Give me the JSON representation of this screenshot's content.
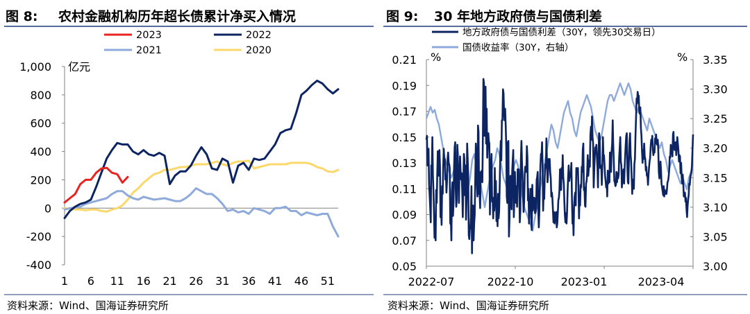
{
  "panels": {
    "left": {
      "fig_label": "图 8:",
      "title": "农村金融机构历年超长债累计净买入情况",
      "source": "资料来源：Wind、国海证券研究所"
    },
    "right": {
      "fig_label": "图 9:",
      "title": "30 年地方政府债与国债利差",
      "source": "资料来源：Wind、国海证券研究所"
    }
  },
  "chart_data": [
    {
      "type": "line",
      "title": "",
      "unit_label": "亿元",
      "xlabel": "",
      "ylabel": "",
      "xlim": [
        1,
        53
      ],
      "ylim": [
        -400,
        1000
      ],
      "x_ticks": [
        1,
        6,
        11,
        16,
        21,
        26,
        31,
        36,
        41,
        46,
        51
      ],
      "y_ticks": [
        -400,
        -200,
        0,
        200,
        400,
        600,
        800,
        1000
      ],
      "y_tick_labels": [
        "-400",
        "-200",
        "0",
        "200",
        "400",
        "600",
        "800",
        "1,000"
      ],
      "grid": false,
      "legend_placement": "top",
      "series": [
        {
          "name": "2023",
          "color": "#e8231f",
          "x": [
            1,
            2,
            3,
            4,
            5,
            6,
            7,
            8,
            9,
            10,
            11,
            12,
            13
          ],
          "values": [
            40,
            70,
            100,
            170,
            200,
            200,
            250,
            280,
            285,
            250,
            240,
            180,
            220
          ]
        },
        {
          "name": "2022",
          "color": "#0c2461",
          "x": [
            1,
            2,
            3,
            4,
            5,
            6,
            7,
            8,
            9,
            10,
            11,
            12,
            13,
            14,
            15,
            16,
            17,
            18,
            19,
            20,
            21,
            22,
            23,
            24,
            25,
            26,
            27,
            28,
            29,
            30,
            31,
            32,
            33,
            34,
            35,
            36,
            37,
            38,
            39,
            40,
            41,
            42,
            43,
            44,
            45,
            46,
            47,
            48,
            49,
            50,
            51,
            52,
            53
          ],
          "values": [
            -70,
            -20,
            10,
            30,
            40,
            60,
            150,
            250,
            350,
            410,
            460,
            450,
            450,
            400,
            380,
            410,
            380,
            370,
            390,
            370,
            170,
            230,
            260,
            260,
            300,
            370,
            430,
            380,
            280,
            270,
            350,
            330,
            180,
            300,
            320,
            270,
            350,
            340,
            350,
            400,
            450,
            530,
            550,
            560,
            670,
            800,
            830,
            870,
            900,
            880,
            840,
            810,
            840
          ]
        },
        {
          "name": "2021",
          "color": "#8eaadb",
          "x": [
            1,
            2,
            3,
            4,
            5,
            6,
            7,
            8,
            9,
            10,
            11,
            12,
            13,
            14,
            15,
            16,
            17,
            18,
            19,
            20,
            21,
            22,
            23,
            24,
            25,
            26,
            27,
            28,
            29,
            30,
            31,
            32,
            33,
            34,
            35,
            36,
            37,
            38,
            39,
            40,
            41,
            42,
            43,
            44,
            45,
            46,
            47,
            48,
            49,
            50,
            51,
            52,
            53
          ],
          "values": [
            -10,
            0,
            5,
            10,
            30,
            40,
            50,
            60,
            70,
            100,
            120,
            120,
            90,
            70,
            60,
            80,
            70,
            60,
            65,
            70,
            60,
            50,
            50,
            70,
            100,
            140,
            120,
            100,
            100,
            70,
            30,
            -20,
            -10,
            -30,
            -20,
            -40,
            0,
            -10,
            -20,
            -40,
            0,
            0,
            10,
            -20,
            -20,
            -50,
            -30,
            -40,
            -50,
            -40,
            -40,
            -130,
            -200
          ]
        },
        {
          "name": "2020",
          "color": "#fbd869",
          "x": [
            1,
            2,
            3,
            4,
            5,
            6,
            7,
            8,
            9,
            10,
            11,
            12,
            13,
            14,
            15,
            16,
            17,
            18,
            19,
            20,
            21,
            22,
            23,
            24,
            25,
            26,
            27,
            28,
            29,
            30,
            31,
            32,
            33,
            34,
            35,
            36,
            37,
            38,
            39,
            40,
            41,
            42,
            43,
            44,
            45,
            46,
            47,
            48,
            49,
            50,
            51,
            52,
            53
          ],
          "values": [
            0,
            -5,
            -10,
            -10,
            -15,
            -10,
            -10,
            -20,
            -25,
            -10,
            0,
            20,
            60,
            110,
            140,
            180,
            210,
            240,
            250,
            270,
            270,
            280,
            290,
            290,
            300,
            310,
            310,
            310,
            320,
            330,
            310,
            300,
            320,
            330,
            330,
            335,
            280,
            290,
            300,
            310,
            310,
            310,
            310,
            320,
            320,
            320,
            320,
            310,
            290,
            280,
            260,
            255,
            270
          ]
        }
      ]
    },
    {
      "type": "line",
      "title": "",
      "xlabel": "",
      "ylabel": "%",
      "ylabel_right": "%",
      "x_tick_labels": [
        "2022-07",
        "2022-10",
        "2023-01",
        "2023-04"
      ],
      "x_tick_positions": [
        0.0,
        0.3333,
        0.6667,
        1.0
      ],
      "ylim": [
        0.05,
        0.21
      ],
      "y_ticks": [
        0.05,
        0.07,
        0.09,
        0.11,
        0.13,
        0.15,
        0.17,
        0.19,
        0.21
      ],
      "ylim_right": [
        3.0,
        3.35
      ],
      "y_ticks_right": [
        3.0,
        3.05,
        3.1,
        3.15,
        3.2,
        3.25,
        3.3,
        3.35
      ],
      "grid": false,
      "legend_placement": "top",
      "series": [
        {
          "name": "地方政府债与国债利差（30Y，领先30交易日）",
          "color": "#0c2461",
          "axis": "left",
          "values": [
            0.148,
            0.151,
            0.128,
            0.134,
            0.141,
            0.113,
            0.105,
            0.095,
            0.084,
            0.128,
            0.125,
            0.15,
            0.12,
            0.108,
            0.093,
            0.072,
            0.078,
            0.07,
            0.109,
            0.099,
            0.12,
            0.139,
            0.121,
            0.12,
            0.14,
            0.127,
            0.088,
            0.099,
            0.082,
            0.112,
            0.106,
            0.127,
            0.141,
            0.131,
            0.133,
            0.117,
            0.12,
            0.107,
            0.116,
            0.133,
            0.138,
            0.13,
            0.129,
            0.126,
            0.083,
            0.086,
            0.07,
            0.108,
            0.115,
            0.089,
            0.099,
            0.127,
            0.142,
            0.146,
            0.11,
            0.096,
            0.101,
            0.144,
            0.121,
            0.125,
            0.099,
            0.128,
            0.135,
            0.123,
            0.117,
            0.122,
            0.108,
            0.088,
            0.115,
            0.137,
            0.133,
            0.105,
            0.128,
            0.086,
            0.103,
            0.145,
            0.134,
            0.121,
            0.074,
            0.071,
            0.079,
            0.079,
            0.088,
            0.112,
            0.06,
            0.097,
            0.097,
            0.07,
            0.083,
            0.09,
            0.118,
            0.145,
            0.134,
            0.116,
            0.104,
            0.159,
            0.154,
            0.106,
            0.107,
            0.095,
            0.123,
            0.119,
            0.124,
            0.115,
            0.148,
            0.195,
            0.192,
            0.151,
            0.183,
            0.189,
            0.145,
            0.172,
            0.134,
            0.146,
            0.153,
            0.147,
            0.145,
            0.09,
            0.114,
            0.128,
            0.137,
            0.1,
            0.103,
            0.087,
            0.103,
            0.093,
            0.126,
            0.096,
            0.116,
            0.085,
            0.093,
            0.081,
            0.106,
            0.087,
            0.093,
            0.113,
            0.137,
            0.147,
            0.132,
            0.163,
            0.163,
            0.187,
            0.184,
            0.17,
            0.163,
            0.172,
            0.159,
            0.143,
            0.104,
            0.099,
            0.146,
            0.147,
            0.073,
            0.087,
            0.117,
            0.12,
            0.097,
            0.094,
            0.124,
            0.133,
            0.14,
            0.088,
            0.104,
            0.123,
            0.105,
            0.099,
            0.112,
            0.096,
            0.125,
            0.12,
            0.125,
            0.111,
            0.084,
            0.093,
            0.133,
            0.147,
            0.131,
            0.12,
            0.104,
            0.092,
            0.1,
            0.121,
            0.127,
            0.123,
            0.123,
            0.143,
            0.134,
            0.101,
            0.11,
            0.083,
            0.103,
            0.096,
            0.11,
            0.088,
            0.078,
            0.113,
            0.093,
            0.098,
            0.103,
            0.103,
            0.091,
            0.092,
            0.095,
            0.117,
            0.119,
            0.123,
            0.093,
            0.08,
            0.093,
            0.114,
            0.128,
            0.137,
            0.136,
            0.146,
            0.125,
            0.093,
            0.108,
            0.102,
            0.12,
            0.129,
            0.126,
            0.149,
            0.132,
            0.115,
            0.121,
            0.133,
            0.133,
            0.133,
            0.123,
            0.118,
            0.104,
            0.107,
            0.103,
            0.094,
            0.084,
            0.092,
            0.083,
            0.091,
            0.09,
            0.092,
            0.08,
            0.083,
            0.092,
            0.101,
            0.103,
            0.109,
            0.125,
            0.122,
            0.109,
            0.126,
            0.118,
            0.136,
            0.119,
            0.114,
            0.101,
            0.09,
            0.084,
            0.091,
            0.083,
            0.092,
            0.107,
            0.119,
            0.128,
            0.116,
            0.119,
            0.122,
            0.123,
            0.13,
            0.103,
            0.083,
            0.088,
            0.074,
            0.097,
            0.104,
            0.107,
            0.097,
            0.126,
            0.123,
            0.125,
            0.126,
            0.111,
            0.087,
            0.103,
            0.097,
            0.113,
            0.111,
            0.127,
            0.123,
            0.14,
            0.145,
            0.109,
            0.111,
            0.097,
            0.096,
            0.114,
            0.116,
            0.122,
            0.136,
            0.12,
            0.125,
            0.132,
            0.127,
            0.152,
            0.158,
            0.148,
            0.166,
            0.15,
            0.145,
            0.111,
            0.124,
            0.134,
            0.142,
            0.138,
            0.144,
            0.134,
            0.126,
            0.111,
            0.136,
            0.153,
            0.15,
            0.126,
            0.128,
            0.128,
            0.113,
            0.128,
            0.15,
            0.135,
            0.136,
            0.129,
            0.12,
            0.116,
            0.111,
            0.115,
            0.104,
            0.124,
            0.114,
            0.118,
            0.115,
            0.138,
            0.123,
            0.123,
            0.139,
            0.145,
            0.163,
            0.145,
            0.133,
            0.116,
            0.115,
            0.112,
            0.113,
            0.123,
            0.115,
            0.122,
            0.118,
            0.121,
            0.134,
            0.142,
            0.15,
            0.131,
            0.128,
            0.111,
            0.117,
            0.122,
            0.125,
            0.114,
            0.126,
            0.135,
            0.144,
            0.151,
            0.153,
            0.126,
            0.115,
            0.114,
            0.133,
            0.147,
            0.153,
            0.136,
            0.131,
            0.12,
            0.106,
            0.117,
            0.115,
            0.11,
            0.129,
            0.133,
            0.151,
            0.165,
            0.18,
            0.176,
            0.185,
            0.182,
            0.182,
            0.169,
            0.168,
            0.173,
            0.157,
            0.151,
            0.139,
            0.13,
            0.14,
            0.133,
            0.145,
            0.135,
            0.133,
            0.124,
            0.127,
            0.12,
            0.121,
            0.113,
            0.121,
            0.127,
            0.131,
            0.134,
            0.143,
            0.148,
            0.146,
            0.151,
            0.14,
            0.136,
            0.139,
            0.138,
            0.149,
            0.146,
            0.152,
            0.145,
            0.144,
            0.148,
            0.14,
            0.123,
            0.118,
            0.121,
            0.131,
            0.124,
            0.114,
            0.111,
            0.108,
            0.105,
            0.112,
            0.104,
            0.109,
            0.107,
            0.106,
            0.106,
            0.11,
            0.115,
            0.116,
            0.119,
            0.124,
            0.135,
            0.134,
            0.144,
            0.14,
            0.141,
            0.135,
            0.152,
            0.154,
            0.143,
            0.14,
            0.143,
            0.146,
            0.136,
            0.142,
            0.15,
            0.145,
            0.14,
            0.131,
            0.136,
            0.135,
            0.122,
            0.13,
            0.119,
            0.114,
            0.121,
            0.114,
            0.104,
            0.104,
            0.107,
            0.1,
            0.103,
            0.094,
            0.088,
            0.097,
            0.102,
            0.105,
            0.114,
            0.113,
            0.119,
            0.121,
            0.123,
            0.128,
            0.14,
            0.152
          ]
        },
        {
          "name": "国债收益率（30Y，右轴）",
          "color": "#8eaadb",
          "axis": "right",
          "values": [
            3.25,
            3.26,
            3.27,
            3.26,
            3.265,
            3.25,
            3.24,
            3.22,
            3.2,
            3.18,
            3.17,
            3.16,
            3.15,
            3.16,
            3.18,
            3.2,
            3.17,
            3.15,
            3.13,
            3.12,
            3.13,
            3.15,
            3.18,
            3.19,
            3.17,
            3.16,
            3.14,
            3.12,
            3.1,
            3.12,
            3.14,
            3.16,
            3.17,
            3.18,
            3.2,
            3.19,
            3.17,
            3.15,
            3.14,
            3.13,
            3.12,
            3.14,
            3.17,
            3.18,
            3.17,
            3.15,
            3.12,
            3.1,
            3.09,
            3.08,
            3.07,
            3.06,
            3.08,
            3.1,
            3.12,
            3.14,
            3.16,
            3.18,
            3.2,
            3.22,
            3.24,
            3.23,
            3.21,
            3.2,
            3.22,
            3.24,
            3.26,
            3.27,
            3.28,
            3.26,
            3.25,
            3.23,
            3.22,
            3.24,
            3.26,
            3.27,
            3.28,
            3.29,
            3.28,
            3.27,
            3.25,
            3.23,
            3.22,
            3.21,
            3.22,
            3.24,
            3.26,
            3.28,
            3.29,
            3.29,
            3.28,
            3.29,
            3.3,
            3.31,
            3.3,
            3.29,
            3.3,
            3.31,
            3.3,
            3.28,
            3.27,
            3.26,
            3.27,
            3.26,
            3.25,
            3.24,
            3.23,
            3.25,
            3.24,
            3.23,
            3.22,
            3.21,
            3.2,
            3.21,
            3.19,
            3.18,
            3.16,
            3.17,
            3.18,
            3.17,
            3.16,
            3.15,
            3.14,
            3.15,
            3.14,
            3.13,
            3.15,
            3.16,
            3.17
          ]
        }
      ]
    }
  ]
}
